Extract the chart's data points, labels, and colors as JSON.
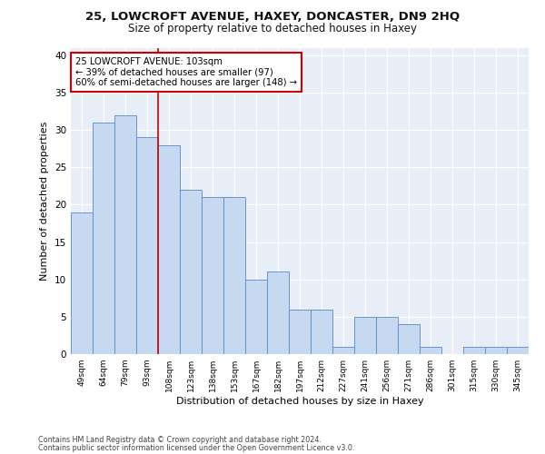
{
  "title1": "25, LOWCROFT AVENUE, HAXEY, DONCASTER, DN9 2HQ",
  "title2": "Size of property relative to detached houses in Haxey",
  "xlabel": "Distribution of detached houses by size in Haxey",
  "ylabel": "Number of detached properties",
  "categories": [
    "49sqm",
    "64sqm",
    "79sqm",
    "93sqm",
    "108sqm",
    "123sqm",
    "138sqm",
    "153sqm",
    "167sqm",
    "182sqm",
    "197sqm",
    "212sqm",
    "227sqm",
    "241sqm",
    "256sqm",
    "271sqm",
    "286sqm",
    "301sqm",
    "315sqm",
    "330sqm",
    "345sqm"
  ],
  "values": [
    19,
    31,
    32,
    29,
    28,
    22,
    21,
    21,
    10,
    11,
    6,
    6,
    1,
    5,
    5,
    4,
    1,
    0,
    1,
    1,
    1
  ],
  "bar_color": "#c7d9f0",
  "bar_edge_color": "#5a8ac6",
  "vline_x": 3.5,
  "vline_color": "#cc0000",
  "annotation_text": "25 LOWCROFT AVENUE: 103sqm\n← 39% of detached houses are smaller (97)\n60% of semi-detached houses are larger (148) →",
  "annotation_box_color": "#ffffff",
  "annotation_box_edge": "#cc0000",
  "ylim": [
    0,
    41
  ],
  "yticks": [
    0,
    5,
    10,
    15,
    20,
    25,
    30,
    35,
    40
  ],
  "bg_color": "#e8eef8",
  "footer1": "Contains HM Land Registry data © Crown copyright and database right 2024.",
  "footer2": "Contains public sector information licensed under the Open Government Licence v3.0.",
  "title1_fontsize": 9.5,
  "title2_fontsize": 8.5,
  "xlabel_fontsize": 8,
  "ylabel_fontsize": 8
}
